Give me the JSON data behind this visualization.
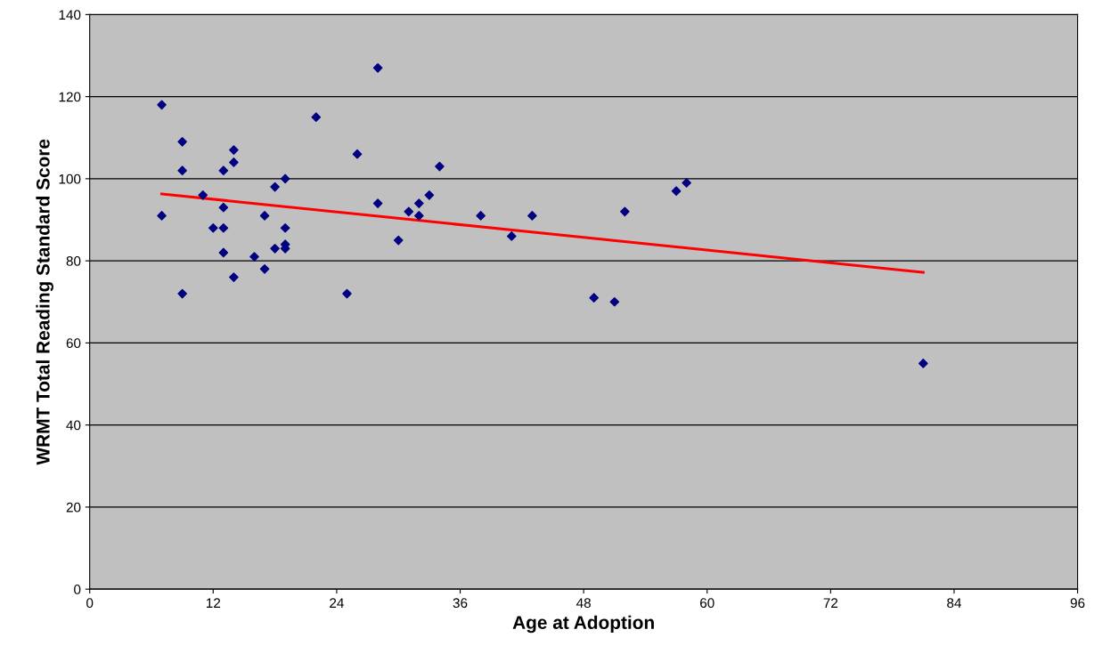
{
  "chart_data": {
    "type": "scatter",
    "xlabel": "Age at Adoption",
    "ylabel": "WRMT Total Reading Standard Score",
    "xlim": [
      0,
      96
    ],
    "xticks": [
      0,
      12,
      24,
      36,
      48,
      60,
      72,
      84,
      96
    ],
    "ylim": [
      0,
      140
    ],
    "yticks": [
      0,
      20,
      40,
      60,
      80,
      100,
      120,
      140
    ],
    "grid": "y",
    "series": [
      {
        "marker": "diamond",
        "color": "#000080",
        "x": [
          7,
          7,
          9,
          9,
          9,
          11,
          12,
          13,
          13,
          13,
          13,
          14,
          14,
          14,
          16,
          17,
          17,
          18,
          18,
          19,
          19,
          19,
          19,
          22,
          25,
          26,
          28,
          28,
          30,
          31,
          32,
          32,
          33,
          34,
          38,
          41,
          43,
          49,
          51,
          52,
          57,
          58,
          81
        ],
        "values": [
          118,
          91,
          109,
          102,
          72,
          96,
          88,
          102,
          93,
          88,
          82,
          76,
          107,
          104,
          81,
          91,
          78,
          98,
          83,
          100,
          88,
          84,
          83,
          115,
          72,
          106,
          127,
          94,
          85,
          92,
          94,
          91,
          96,
          103,
          91,
          86,
          91,
          71,
          70,
          92,
          97,
          99,
          55
        ]
      },
      {
        "type": "line",
        "marker": "none",
        "color": "#ff0000",
        "x": [
          7,
          81
        ],
        "values": [
          96.3,
          77.2
        ]
      }
    ]
  }
}
